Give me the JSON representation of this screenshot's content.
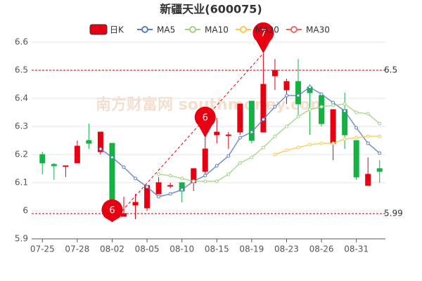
{
  "chart_data": {
    "type": "candlestick",
    "title": "新疆天业(600075)",
    "watermark": "南方财富网 southmoney.com",
    "categories": [
      "07-25",
      null,
      null,
      "07-28",
      null,
      null,
      "08-02",
      null,
      null,
      "08-05",
      null,
      null,
      "08-10",
      null,
      null,
      "08-15",
      null,
      null,
      "08-19",
      null,
      null,
      "08-23",
      null,
      null,
      "08-26",
      null,
      null,
      "08-31",
      null,
      null
    ],
    "candles": {
      "name": "日K",
      "up_color": "#e60012",
      "down_color": "#14b143",
      "open": [
        6.2,
        6.165,
        6.16,
        6.17,
        6.25,
        6.21,
        6.24,
        5.98,
        6.02,
        6.01,
        6.06,
        6.09,
        6.1,
        6.1,
        6.14,
        6.27,
        6.27,
        6.28,
        6.39,
        6.28,
        6.48,
        6.43,
        6.46,
        6.44,
        6.41,
        6.24,
        6.36,
        6.25,
        6.09,
        6.15
      ],
      "close": [
        6.17,
        6.16,
        6.16,
        6.23,
        6.24,
        6.28,
        6.03,
        5.99,
        6.03,
        6.09,
        6.1,
        6.09,
        6.07,
        6.15,
        6.22,
        6.28,
        6.27,
        6.38,
        6.25,
        6.45,
        6.5,
        6.46,
        6.38,
        6.42,
        6.31,
        6.36,
        6.27,
        6.12,
        6.13,
        6.14
      ],
      "high": [
        6.21,
        6.17,
        6.16,
        6.25,
        6.31,
        6.28,
        6.24,
        6.05,
        6.06,
        6.09,
        6.12,
        6.1,
        6.1,
        6.15,
        6.26,
        6.33,
        6.28,
        6.38,
        6.39,
        6.56,
        6.54,
        6.47,
        6.54,
        6.45,
        6.42,
        6.36,
        6.42,
        6.25,
        6.19,
        6.18
      ],
      "low": [
        6.13,
        6.11,
        6.12,
        6.17,
        6.22,
        6.2,
        5.96,
        5.98,
        5.97,
        6.0,
        6.06,
        6.08,
        6.03,
        6.07,
        6.13,
        6.24,
        6.22,
        6.27,
        6.24,
        6.28,
        6.43,
        6.38,
        6.33,
        6.27,
        6.3,
        6.18,
        6.22,
        6.11,
        6.09,
        6.1
      ]
    },
    "series": [
      {
        "name": "MA5",
        "color": "#5b7bc4",
        "values": [
          null,
          null,
          null,
          null,
          null,
          6.22,
          6.19,
          6.155,
          6.115,
          6.085,
          6.05,
          6.06,
          6.075,
          6.105,
          6.125,
          6.16,
          6.195,
          6.26,
          6.28,
          6.325,
          6.37,
          6.41,
          6.41,
          6.44,
          6.415,
          6.385,
          6.355,
          6.295,
          6.24,
          6.205
        ]
      },
      {
        "name": "MA10",
        "color": "#9fd37f",
        "values": [
          null,
          null,
          null,
          null,
          null,
          null,
          null,
          null,
          null,
          null,
          6.13,
          6.125,
          6.115,
          6.105,
          6.105,
          6.105,
          6.13,
          6.17,
          6.19,
          6.225,
          6.265,
          6.3,
          6.335,
          6.36,
          6.37,
          6.375,
          6.38,
          6.35,
          6.345,
          6.31
        ]
      },
      {
        "name": "MA20",
        "color": "#f7c84a",
        "values": [
          null,
          null,
          null,
          null,
          null,
          null,
          null,
          null,
          null,
          null,
          null,
          null,
          null,
          null,
          null,
          null,
          null,
          null,
          null,
          null,
          6.2,
          6.215,
          6.225,
          6.235,
          6.24,
          6.24,
          6.255,
          6.26,
          6.265,
          6.265
        ]
      },
      {
        "name": "MA30",
        "color": "#ee6666",
        "values": [
          null,
          null,
          null,
          null,
          null,
          null,
          null,
          null,
          null,
          null,
          null,
          null,
          null,
          null,
          null,
          null,
          null,
          null,
          null,
          null,
          null,
          null,
          null,
          null,
          null,
          null,
          null,
          null,
          null,
          null
        ]
      }
    ],
    "reference_lines": [
      {
        "value": 6.5,
        "label": "6.5"
      },
      {
        "value": 5.99,
        "label": "5.99"
      }
    ],
    "pins": [
      {
        "label": 6,
        "price": 5.96
      },
      {
        "label": 6,
        "price": 6.26
      },
      {
        "label": 7,
        "price": 6.56
      }
    ],
    "ylim": [
      5.9,
      6.6
    ],
    "yticks": [
      5.9,
      6,
      6.1,
      6.2,
      6.3,
      6.4,
      6.5,
      6.6
    ],
    "grid": true
  }
}
